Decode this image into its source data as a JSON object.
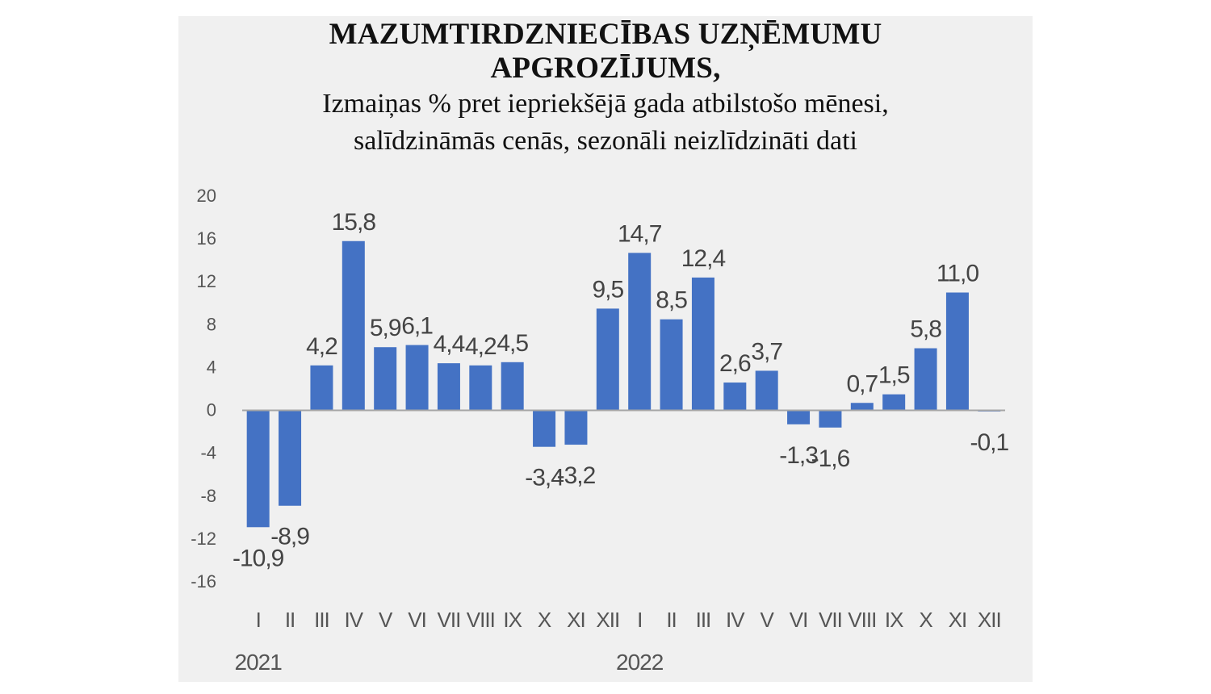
{
  "chart_data": {
    "type": "bar",
    "title_lines": [
      "MAZUMTIRDZNIECĪBAS UZŅĒMUMU",
      "APGROZĪJUMS,"
    ],
    "subtitle_lines": [
      "Izmaiņas % pret iepriekšējā gada atbilstošo mēnesi,",
      "salīdzināmās cenās, sezonāli neizlīdzināti dati"
    ],
    "xlabel": "",
    "ylabel": "",
    "ylim": [
      -16,
      20
    ],
    "yticks": [
      20,
      16,
      12,
      8,
      4,
      0,
      -4,
      -8,
      -12,
      -16
    ],
    "categories": [
      "I",
      "II",
      "III",
      "IV",
      "V",
      "VI",
      "VII",
      "VIII",
      "IX",
      "X",
      "XI",
      "XII",
      "I",
      "II",
      "III",
      "IV",
      "V",
      "VI",
      "VII",
      "VIII",
      "IX",
      "X",
      "XI",
      "XII"
    ],
    "year_labels": [
      {
        "label": "2021",
        "start_index": 0
      },
      {
        "label": "2022",
        "start_index": 12
      }
    ],
    "values": [
      -10.9,
      -8.9,
      4.2,
      15.8,
      5.9,
      6.1,
      4.4,
      4.2,
      4.5,
      -3.4,
      -3.2,
      9.5,
      14.7,
      8.5,
      12.4,
      2.6,
      3.7,
      -1.3,
      -1.6,
      0.7,
      1.5,
      5.8,
      11.0,
      -0.1
    ],
    "data_labels": [
      "-10,9",
      "-8,9",
      "4,2",
      "15,8",
      "5,9",
      "6,1",
      "4,4",
      "4,2",
      "4,5",
      "-3,4",
      "-3,2",
      "9,5",
      "14,7",
      "8,5",
      "12,4",
      "2,6",
      "3,7",
      "-1,3",
      "-1,6",
      "0,7",
      "1,5",
      "5,8",
      "11,0",
      "-0,1"
    ],
    "bar_color": "#4472c4",
    "grid": false,
    "legend": "none"
  }
}
